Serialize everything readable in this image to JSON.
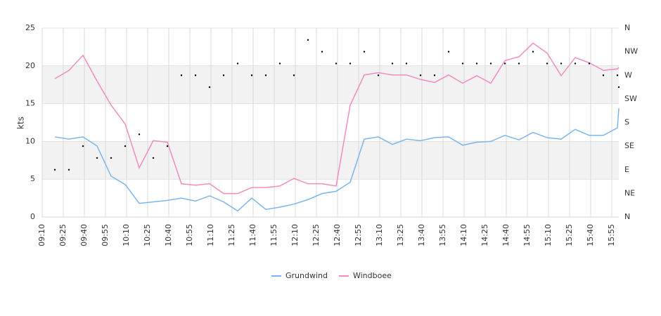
{
  "chart_data": {
    "type": "line",
    "y_label": "kts",
    "x": [
      559,
      569,
      579,
      589,
      599,
      609,
      619,
      629,
      639,
      649,
      659,
      669,
      679,
      689,
      699,
      709,
      719,
      729,
      739,
      749,
      759,
      769,
      779,
      789,
      799,
      809,
      819,
      829,
      839,
      849,
      859,
      869,
      879,
      889,
      899,
      909,
      919,
      929,
      939,
      949,
      959,
      960
    ],
    "series": [
      {
        "name": "Grundwind",
        "color": "#7cb5ec",
        "values": [
          10.6,
          10.3,
          10.6,
          9.4,
          5.4,
          4.3,
          1.8,
          2.0,
          2.2,
          2.5,
          2.1,
          2.8,
          2.0,
          0.8,
          2.5,
          1.0,
          1.3,
          1.7,
          2.3,
          3.1,
          3.4,
          4.6,
          10.3,
          10.6,
          9.6,
          10.3,
          10.1,
          10.5,
          10.6,
          9.5,
          9.9,
          10.0,
          10.8,
          10.2,
          11.2,
          10.5,
          10.3,
          11.6,
          10.8,
          10.8,
          11.8,
          14.4
        ]
      },
      {
        "name": "Windboee",
        "color": "#f08cc0",
        "values": [
          18.3,
          19.4,
          21.4,
          18.0,
          14.8,
          12.3,
          6.5,
          10.1,
          9.9,
          4.4,
          4.2,
          4.4,
          3.1,
          3.1,
          3.9,
          3.9,
          4.1,
          5.1,
          4.4,
          4.4,
          4.1,
          14.8,
          18.8,
          19.1,
          18.8,
          18.8,
          18.2,
          17.8,
          18.8,
          17.7,
          18.7,
          17.7,
          20.7,
          21.2,
          23.0,
          21.7,
          18.7,
          21.1,
          20.4,
          19.4,
          19.6,
          19.8
        ]
      },
      {
        "axis": "y2",
        "style": "dots",
        "color": "#000000",
        "values": [
          90,
          90,
          135,
          112.5,
          112.5,
          135,
          157.5,
          112.5,
          135,
          270,
          270,
          247.5,
          270,
          292.5,
          270,
          270,
          292.5,
          270,
          337.5,
          315,
          292.5,
          292.5,
          315,
          270,
          292.5,
          292.5,
          270,
          270,
          315,
          292.5,
          292.5,
          292.5,
          292.5,
          292.5,
          315,
          292.5,
          292.5,
          292.5,
          292.5,
          270,
          270,
          247.5
        ]
      }
    ],
    "xlim": [
      550,
      960
    ],
    "xticks": [
      {
        "value": 550,
        "label": "09:10"
      },
      {
        "value": 565,
        "label": "09:25"
      },
      {
        "value": 580,
        "label": "09:40"
      },
      {
        "value": 595,
        "label": "09:55"
      },
      {
        "value": 610,
        "label": "10:10"
      },
      {
        "value": 625,
        "label": "10:25"
      },
      {
        "value": 640,
        "label": "10:40"
      },
      {
        "value": 655,
        "label": "10:55"
      },
      {
        "value": 670,
        "label": "11:10"
      },
      {
        "value": 685,
        "label": "11:25"
      },
      {
        "value": 700,
        "label": "11:40"
      },
      {
        "value": 715,
        "label": "11:55"
      },
      {
        "value": 730,
        "label": "12:10"
      },
      {
        "value": 745,
        "label": "12:25"
      },
      {
        "value": 760,
        "label": "12:40"
      },
      {
        "value": 775,
        "label": "12:55"
      },
      {
        "value": 790,
        "label": "13:10"
      },
      {
        "value": 805,
        "label": "13:25"
      },
      {
        "value": 820,
        "label": "13:40"
      },
      {
        "value": 835,
        "label": "13:55"
      },
      {
        "value": 850,
        "label": "14:10"
      },
      {
        "value": 865,
        "label": "14:25"
      },
      {
        "value": 880,
        "label": "14:40"
      },
      {
        "value": 895,
        "label": "14:55"
      },
      {
        "value": 910,
        "label": "15:10"
      },
      {
        "value": 925,
        "label": "15:25"
      },
      {
        "value": 940,
        "label": "15:40"
      },
      {
        "value": 955,
        "label": "15:55"
      }
    ],
    "ylim": [
      0,
      25
    ],
    "yticks": [
      0,
      5,
      10,
      15,
      20,
      25
    ],
    "y2lim": [
      0,
      360
    ],
    "y2ticks": [
      {
        "value": 0,
        "label": "N"
      },
      {
        "value": 45,
        "label": "NE"
      },
      {
        "value": 90,
        "label": "E"
      },
      {
        "value": 135,
        "label": "SE"
      },
      {
        "value": 180,
        "label": "S"
      },
      {
        "value": 225,
        "label": "SW"
      },
      {
        "value": 270,
        "label": "W"
      },
      {
        "value": 315,
        "label": "NW"
      },
      {
        "value": 360,
        "label": "N"
      }
    ],
    "bands": [
      [
        5,
        10
      ],
      [
        15,
        20
      ]
    ],
    "grid": true,
    "legend": "bottom"
  }
}
